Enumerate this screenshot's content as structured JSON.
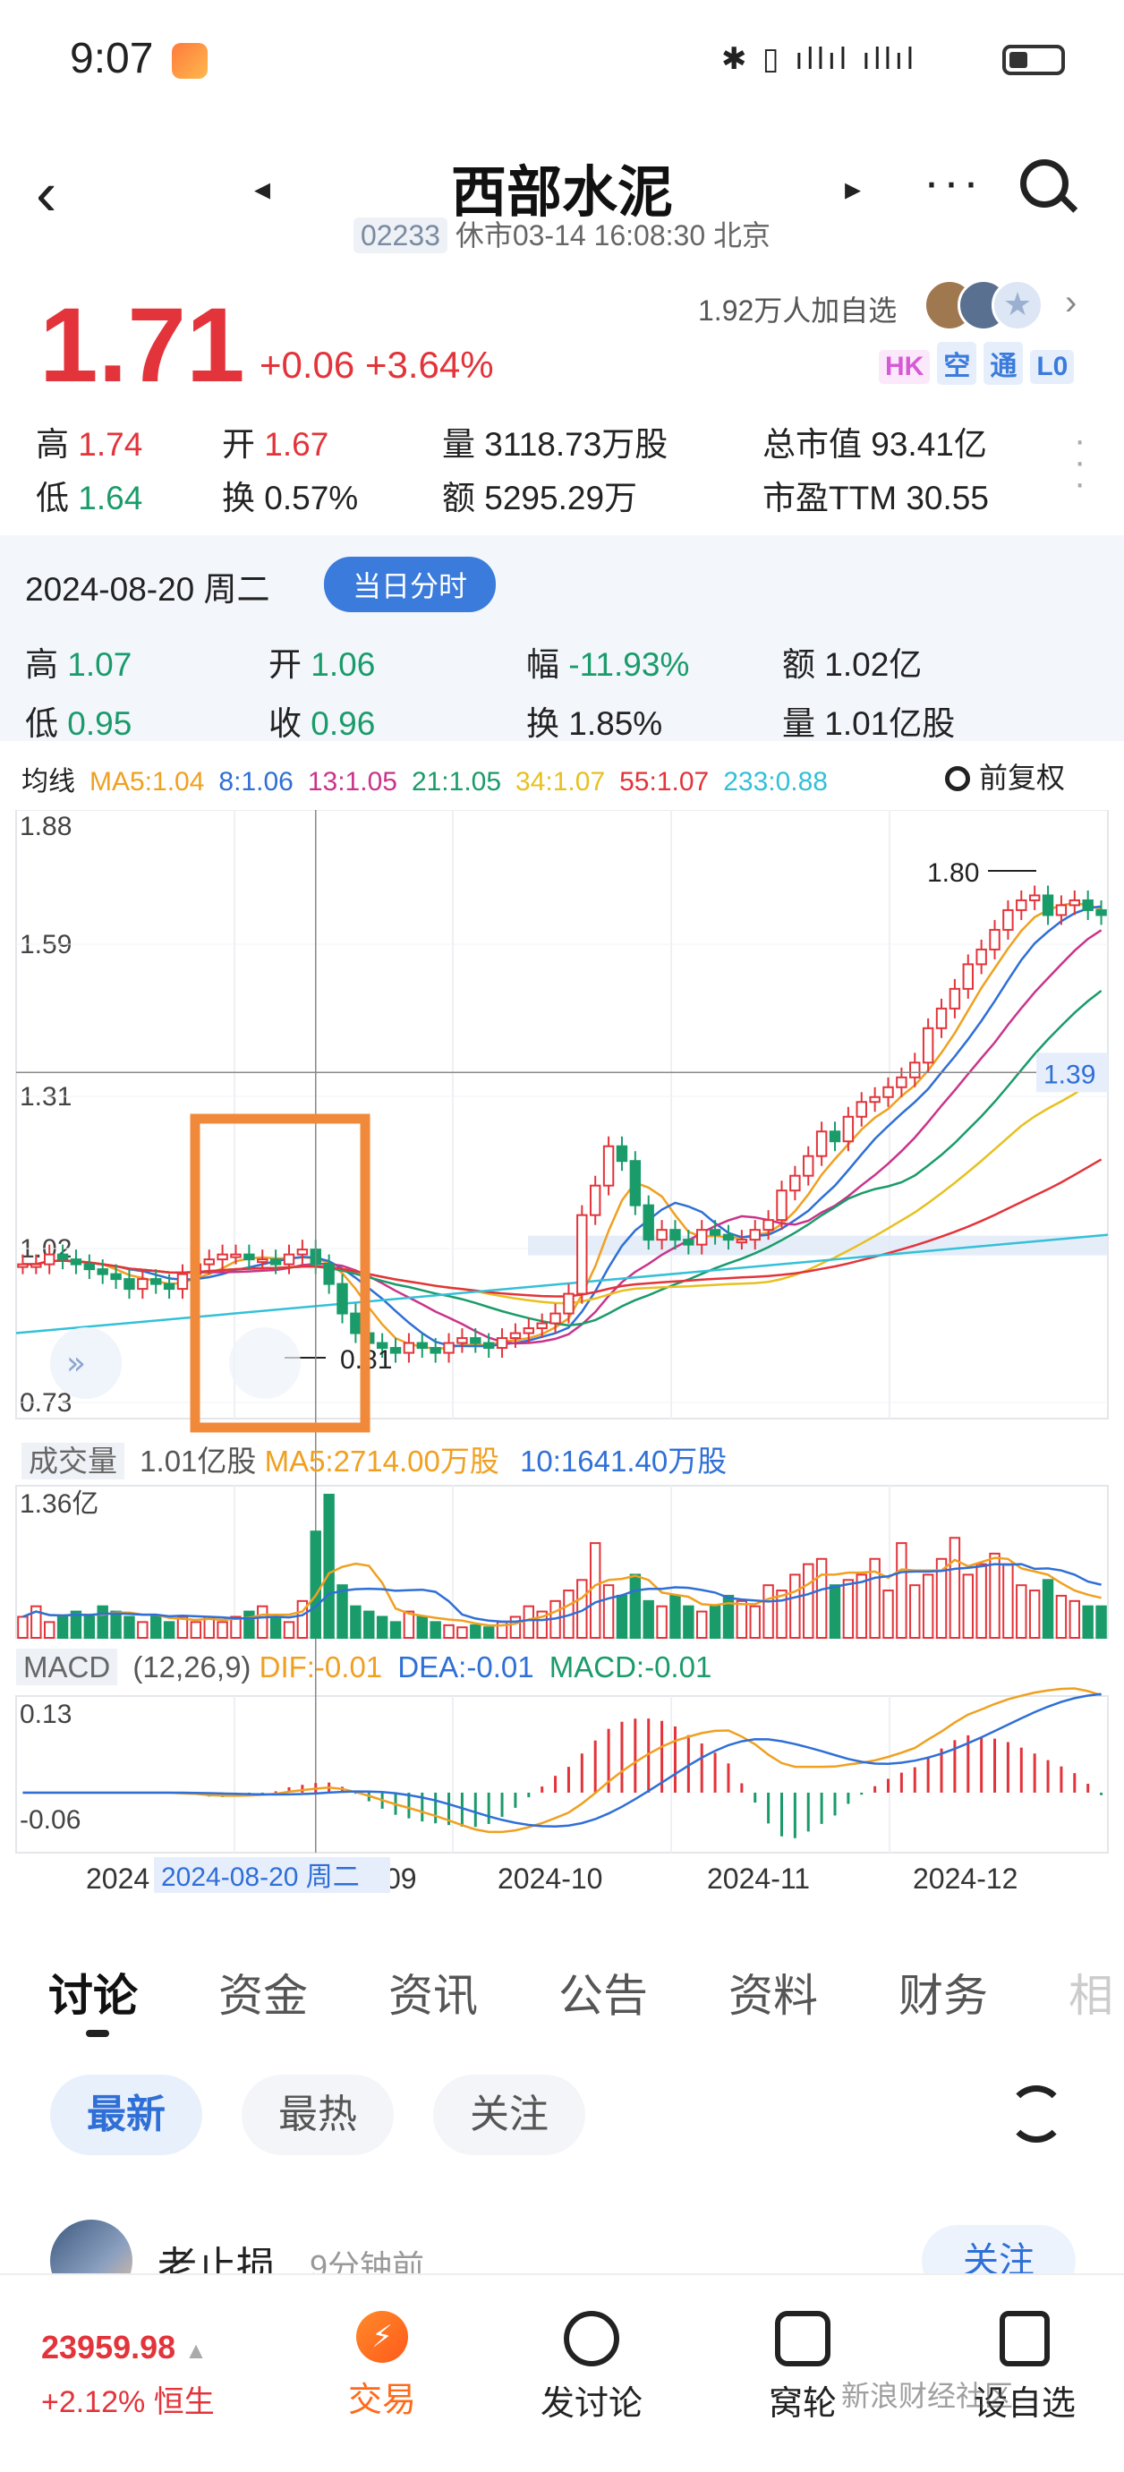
{
  "status_bar": {
    "time": "9:07",
    "icons": "✱ ▯ ıllıl ıllıl"
  },
  "header": {
    "back_icon": "‹",
    "prev_icon": "◂",
    "next_icon": "▸",
    "title": "西部水泥",
    "code": "02233",
    "status_text": "休市03-14 16:08:30 北京",
    "more_icon": "···"
  },
  "quote": {
    "price": "1.71",
    "change": "+0.06 +3.64%",
    "followers": "1.92万人加自选",
    "tags": [
      "HK",
      "空",
      "通",
      "L0"
    ],
    "tag_colors": [
      "#d65ad6",
      "#3a7bdc",
      "#3a7bdc",
      "#3a7bdc"
    ],
    "high_label": "高",
    "high": "1.74",
    "open_label": "开",
    "open": "1.67",
    "vol_label": "量",
    "vol": "3118.73万股",
    "mcap_label": "总市值",
    "mcap": "93.41亿",
    "low_label": "低",
    "low": "1.64",
    "turn_label": "换",
    "turn": "0.57%",
    "amt_label": "额",
    "amt": "5295.29万",
    "pe_label": "市盈TTM",
    "pe": "30.55"
  },
  "day_stats": {
    "date": "2024-08-20 周二",
    "mode_button": "当日分时",
    "high_label": "高",
    "high": "1.07",
    "open_label": "开",
    "open": "1.06",
    "range_label": "幅",
    "range": "-11.93%",
    "amt_label": "额",
    "amt": "1.02亿",
    "low_label": "低",
    "low": "0.95",
    "close_label": "收",
    "close": "0.96",
    "turn_label": "换",
    "turn": "1.85%",
    "vol_label": "量",
    "vol": "1.01亿股"
  },
  "ma_legend": {
    "label": "均线",
    "items": [
      {
        "text": "MA5:1.04",
        "color": "#f0a020"
      },
      {
        "text": "8:1.06",
        "color": "#2f6fd6"
      },
      {
        "text": "13:1.05",
        "color": "#c9348a"
      },
      {
        "text": "21:1.05",
        "color": "#1a9b6a"
      },
      {
        "text": "34:1.07",
        "color": "#e8c020"
      },
      {
        "text": "55:1.07",
        "color": "#e2343a"
      },
      {
        "text": "233:0.88",
        "color": "#33c0d8"
      }
    ],
    "adjust": "前复权"
  },
  "chart_data": {
    "type": "candlestick",
    "y_ticks": [
      "1.88",
      "1.59",
      "1.31",
      "1.02",
      "0.73"
    ],
    "ylim": [
      0.73,
      1.88
    ],
    "x_ticks": [
      "2024",
      "09",
      "2024-10",
      "2024-11",
      "2024-12"
    ],
    "crosshair_date": "2024-08-20 周二",
    "crosshair_price": "1.39",
    "max_label": "1.80",
    "min_label": "0.81",
    "closes": [
      1.0,
      1.0,
      1.02,
      1.01,
      1.0,
      0.99,
      0.98,
      0.97,
      0.95,
      0.97,
      0.96,
      0.95,
      0.98,
      1.0,
      1.01,
      1.02,
      1.02,
      1.01,
      1.01,
      1.0,
      1.02,
      1.03,
      1.0,
      0.96,
      0.9,
      0.86,
      0.84,
      0.83,
      0.82,
      0.84,
      0.83,
      0.82,
      0.84,
      0.85,
      0.84,
      0.83,
      0.85,
      0.86,
      0.87,
      0.88,
      0.9,
      0.94,
      1.1,
      1.16,
      1.24,
      1.21,
      1.12,
      1.05,
      1.07,
      1.05,
      1.04,
      1.07,
      1.06,
      1.05,
      1.05,
      1.07,
      1.09,
      1.15,
      1.18,
      1.22,
      1.27,
      1.25,
      1.3,
      1.33,
      1.34,
      1.36,
      1.38,
      1.41,
      1.48,
      1.52,
      1.56,
      1.61,
      1.64,
      1.68,
      1.72,
      1.74,
      1.75,
      1.71,
      1.73,
      1.74,
      1.72,
      1.71
    ],
    "volume_label": "成交量",
    "volume_max_label": "1.36亿",
    "volume_summary": "1.01亿股",
    "volume_ma5": "MA5:2714.00万股",
    "volume_ma10": "10:1641.40万股",
    "volumes": [
      0.2,
      0.3,
      0.15,
      0.2,
      0.25,
      0.2,
      0.3,
      0.25,
      0.2,
      0.15,
      0.2,
      0.15,
      0.2,
      0.15,
      0.2,
      0.15,
      0.2,
      0.25,
      0.3,
      0.2,
      0.15,
      0.35,
      1.01,
      1.36,
      0.5,
      0.3,
      0.25,
      0.2,
      0.15,
      0.25,
      0.2,
      0.15,
      0.12,
      0.1,
      0.12,
      0.1,
      0.15,
      0.2,
      0.3,
      0.25,
      0.35,
      0.45,
      0.55,
      0.9,
      0.5,
      0.4,
      0.6,
      0.35,
      0.3,
      0.4,
      0.3,
      0.25,
      0.3,
      0.4,
      0.35,
      0.3,
      0.5,
      0.45,
      0.6,
      0.7,
      0.75,
      0.5,
      0.55,
      0.6,
      0.75,
      0.45,
      0.9,
      0.5,
      0.6,
      0.75,
      0.95,
      0.6,
      0.7,
      0.8,
      0.7,
      0.5,
      0.45,
      0.55,
      0.4,
      0.35,
      0.3,
      0.3
    ],
    "macd_label": "MACD",
    "macd_params": "(12,26,9)",
    "dif": "DIF:-0.01",
    "dea": "DEA:-0.01",
    "macd": "MACD:-0.01",
    "macd_ticks": [
      "0.13",
      "-0.06"
    ]
  },
  "tabs": [
    "讨论",
    "资金",
    "资讯",
    "公告",
    "资料",
    "财务",
    "相"
  ],
  "filters": [
    "最新",
    "最热",
    "关注"
  ],
  "post": {
    "author": "老止损",
    "time": "9分钟前",
    "follow": "关注"
  },
  "bottom_bar": {
    "index_value": "23959.98",
    "index_change": "+2.12% 恒生",
    "items": [
      "交易",
      "发讨论",
      "窝轮",
      "设自选"
    ],
    "watermark": "新浪财经社区"
  }
}
